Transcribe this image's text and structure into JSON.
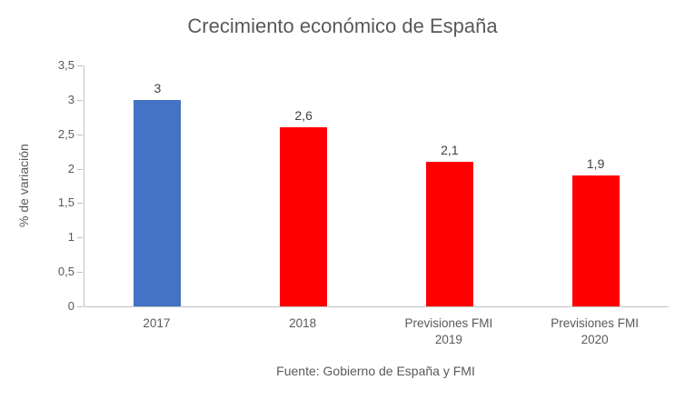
{
  "chart_data": {
    "type": "bar",
    "title": "Crecimiento económico de España",
    "ylabel": "% de variación",
    "xlabel": "",
    "caption": "Fuente: Gobierno de España y FMI",
    "categories": [
      "2017",
      "2018",
      "Previsiones FMI 2019",
      "Previsiones FMI 2020"
    ],
    "values": [
      3,
      2.6,
      2.1,
      1.9
    ],
    "value_labels": [
      "3",
      "2,6",
      "2,1",
      "1,9"
    ],
    "bar_colors": [
      "#4472C4",
      "#FF0000",
      "#FF0000",
      "#FF0000"
    ],
    "ylim": [
      0,
      3.5
    ],
    "yticks": [
      0,
      0.5,
      1,
      1.5,
      2,
      2.5,
      3,
      3.5
    ],
    "ytick_labels": [
      "0",
      "0,5",
      "1",
      "1,5",
      "2",
      "2,5",
      "3",
      "3,5"
    ],
    "grid": false,
    "legend": "none"
  },
  "colors": {
    "axis_line": "#bfbfbf",
    "axis_text": "#595959",
    "data_label_text": "#404040",
    "highlight_bar": "#4472C4",
    "forecast_bar": "#FF0000"
  }
}
